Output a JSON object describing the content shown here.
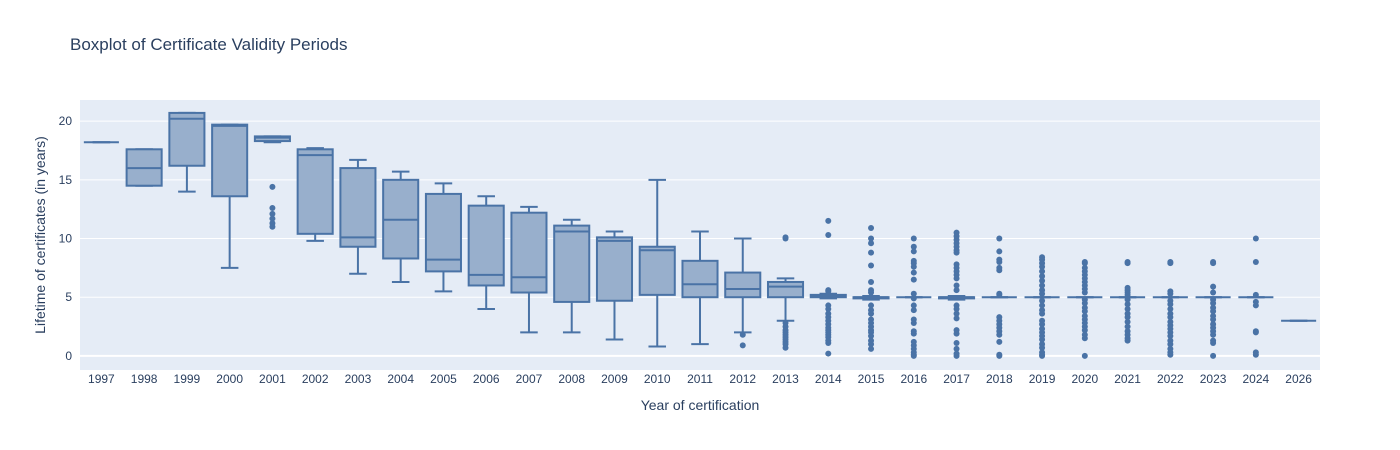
{
  "chart_data": {
    "type": "box",
    "title": "Boxplot of Certificate Validity Periods",
    "xlabel": "Year of certification",
    "ylabel": "Lifetime of certificates (in years)",
    "ylim": [
      -1.2,
      21.8
    ],
    "yticks": [
      0,
      5,
      10,
      15,
      20
    ],
    "grid": true,
    "colors": {
      "box_line": "#4a73a6",
      "box_fill": "#98afcc",
      "outlier": "#4a73a6",
      "plot_bg": "#e5ecf6",
      "grid": "#ffffff",
      "text": "#2a3f5f"
    },
    "categories": [
      "1997",
      "1998",
      "1999",
      "2000",
      "2001",
      "2002",
      "2003",
      "2004",
      "2005",
      "2006",
      "2007",
      "2008",
      "2009",
      "2010",
      "2011",
      "2012",
      "2013",
      "2014",
      "2015",
      "2016",
      "2017",
      "2018",
      "2019",
      "2020",
      "2021",
      "2022",
      "2023",
      "2024",
      "2026"
    ],
    "boxes": [
      {
        "min": 18.2,
        "q1": 18.2,
        "median": 18.2,
        "q3": 18.2,
        "max": 18.2,
        "outliers": []
      },
      {
        "min": 14.5,
        "q1": 14.5,
        "median": 16.0,
        "q3": 17.6,
        "max": 17.6,
        "outliers": []
      },
      {
        "min": 14.0,
        "q1": 16.2,
        "median": 20.2,
        "q3": 20.7,
        "max": 20.7,
        "outliers": []
      },
      {
        "min": 7.5,
        "q1": 13.6,
        "median": 19.6,
        "q3": 19.7,
        "max": 19.7,
        "outliers": []
      },
      {
        "min": 18.2,
        "q1": 18.3,
        "median": 18.6,
        "q3": 18.7,
        "max": 18.7,
        "outliers": [
          14.4,
          12.6,
          12.1,
          11.7,
          11.3,
          11.0
        ]
      },
      {
        "min": 9.8,
        "q1": 10.4,
        "median": 17.1,
        "q3": 17.6,
        "max": 17.7,
        "outliers": []
      },
      {
        "min": 7.0,
        "q1": 9.3,
        "median": 10.1,
        "q3": 16.0,
        "max": 16.7,
        "outliers": []
      },
      {
        "min": 6.3,
        "q1": 8.3,
        "median": 11.6,
        "q3": 15.0,
        "max": 15.7,
        "outliers": []
      },
      {
        "min": 5.5,
        "q1": 7.2,
        "median": 8.2,
        "q3": 13.8,
        "max": 14.7,
        "outliers": []
      },
      {
        "min": 4.0,
        "q1": 6.0,
        "median": 6.9,
        "q3": 12.8,
        "max": 13.6,
        "outliers": []
      },
      {
        "min": 2.0,
        "q1": 5.4,
        "median": 6.7,
        "q3": 12.2,
        "max": 12.7,
        "outliers": []
      },
      {
        "min": 2.0,
        "q1": 4.6,
        "median": 10.6,
        "q3": 11.1,
        "max": 11.6,
        "outliers": []
      },
      {
        "min": 1.4,
        "q1": 4.7,
        "median": 9.8,
        "q3": 10.1,
        "max": 10.6,
        "outliers": []
      },
      {
        "min": 0.8,
        "q1": 5.2,
        "median": 9.0,
        "q3": 9.3,
        "max": 15.0,
        "outliers": []
      },
      {
        "min": 1.0,
        "q1": 5.0,
        "median": 6.1,
        "q3": 8.1,
        "max": 10.6,
        "outliers": []
      },
      {
        "min": 2.0,
        "q1": 5.0,
        "median": 5.7,
        "q3": 7.1,
        "max": 10.0,
        "outliers": [
          1.8,
          0.9
        ]
      },
      {
        "min": 3.0,
        "q1": 5.0,
        "median": 5.9,
        "q3": 6.3,
        "max": 6.6,
        "outliers": [
          10.0,
          10.1,
          2.8,
          2.5,
          2.2,
          2.0,
          1.8,
          1.6,
          1.4,
          1.2,
          1.0,
          0.7
        ]
      },
      {
        "min": 4.9,
        "q1": 5.0,
        "median": 5.1,
        "q3": 5.2,
        "max": 5.3,
        "outliers": [
          11.5,
          10.3,
          5.6,
          5.5,
          4.3,
          4.0,
          3.6,
          3.3,
          3.0,
          2.7,
          2.4,
          2.2,
          2.0,
          1.8,
          1.6,
          1.3,
          1.1,
          0.2
        ]
      },
      {
        "min": 4.8,
        "q1": 4.9,
        "median": 5.0,
        "q3": 5.0,
        "max": 5.1,
        "outliers": [
          10.9,
          10.0,
          9.6,
          8.8,
          7.7,
          6.3,
          5.6,
          5.4,
          4.3,
          3.9,
          3.6,
          3.1,
          2.8,
          2.5,
          2.2,
          2.0,
          1.7,
          1.3,
          1.0,
          0.6
        ]
      },
      {
        "min": 5.0,
        "q1": 5.0,
        "median": 5.0,
        "q3": 5.0,
        "max": 5.0,
        "outliers": [
          10.0,
          9.3,
          8.9,
          8.1,
          7.9,
          7.6,
          7.1,
          6.5,
          5.3,
          4.9,
          4.3,
          3.9,
          3.1,
          2.8,
          2.1,
          1.9,
          1.2,
          0.9,
          0.6,
          0.3,
          0.1,
          0.0
        ]
      },
      {
        "min": 4.8,
        "q1": 4.9,
        "median": 5.0,
        "q3": 5.0,
        "max": 5.1,
        "outliers": [
          10.5,
          10.2,
          9.9,
          9.6,
          9.3,
          9.0,
          8.8,
          7.8,
          7.5,
          7.2,
          6.9,
          6.6,
          6.0,
          5.6,
          4.3,
          4.0,
          3.6,
          3.2,
          2.2,
          1.9,
          1.1,
          0.6,
          0.2,
          0.0
        ]
      },
      {
        "min": 5.0,
        "q1": 5.0,
        "median": 5.0,
        "q3": 5.0,
        "max": 5.0,
        "outliers": [
          10.0,
          8.9,
          8.2,
          8.0,
          7.5,
          7.3,
          5.3,
          5.2,
          3.3,
          3.0,
          2.7,
          2.4,
          2.1,
          1.8,
          1.2,
          0.1,
          0.0
        ]
      },
      {
        "min": 5.0,
        "q1": 5.0,
        "median": 5.0,
        "q3": 5.0,
        "max": 5.0,
        "outliers": [
          8.4,
          8.2,
          7.9,
          7.6,
          7.2,
          6.8,
          6.4,
          6.0,
          5.6,
          5.3,
          4.7,
          4.3,
          3.9,
          3.6,
          3.0,
          2.7,
          2.3,
          2.0,
          1.7,
          1.4,
          1.0,
          0.7,
          0.3,
          0.1,
          0.0
        ]
      },
      {
        "min": 5.0,
        "q1": 5.0,
        "median": 5.0,
        "q3": 5.0,
        "max": 5.0,
        "outliers": [
          8.0,
          7.9,
          7.5,
          7.2,
          6.9,
          6.6,
          6.3,
          6.0,
          5.7,
          5.4,
          4.8,
          4.5,
          4.1,
          3.8,
          3.4,
          3.1,
          2.8,
          2.5,
          2.2,
          1.8,
          1.5,
          0.0
        ]
      },
      {
        "min": 5.0,
        "q1": 5.0,
        "median": 5.0,
        "q3": 5.0,
        "max": 5.0,
        "outliers": [
          8.0,
          7.9,
          5.8,
          5.6,
          5.4,
          5.2,
          4.8,
          4.4,
          4.0,
          3.6,
          3.3,
          2.9,
          2.5,
          2.1,
          1.8,
          1.5,
          1.3
        ]
      },
      {
        "min": 5.0,
        "q1": 5.0,
        "median": 5.0,
        "q3": 5.0,
        "max": 5.0,
        "outliers": [
          8.0,
          7.9,
          5.5,
          5.3,
          4.7,
          4.4,
          4.0,
          3.6,
          3.3,
          2.9,
          2.6,
          2.3,
          2.0,
          1.7,
          1.3,
          1.0,
          0.6,
          0.3,
          0.1
        ]
      },
      {
        "min": 5.0,
        "q1": 5.0,
        "median": 5.0,
        "q3": 5.0,
        "max": 5.0,
        "outliers": [
          8.0,
          7.9,
          5.9,
          5.4,
          4.8,
          4.5,
          4.1,
          3.8,
          3.4,
          3.1,
          2.7,
          2.4,
          2.1,
          1.8,
          1.3,
          1.1,
          0.0
        ]
      },
      {
        "min": 5.0,
        "q1": 5.0,
        "median": 5.0,
        "q3": 5.0,
        "max": 5.0,
        "outliers": [
          10.0,
          8.0,
          5.2,
          4.6,
          4.3,
          2.1,
          2.0,
          0.3,
          0.1
        ]
      },
      {
        "min": 3.0,
        "q1": 3.0,
        "median": 3.0,
        "q3": 3.0,
        "max": 3.0,
        "outliers": []
      }
    ]
  }
}
